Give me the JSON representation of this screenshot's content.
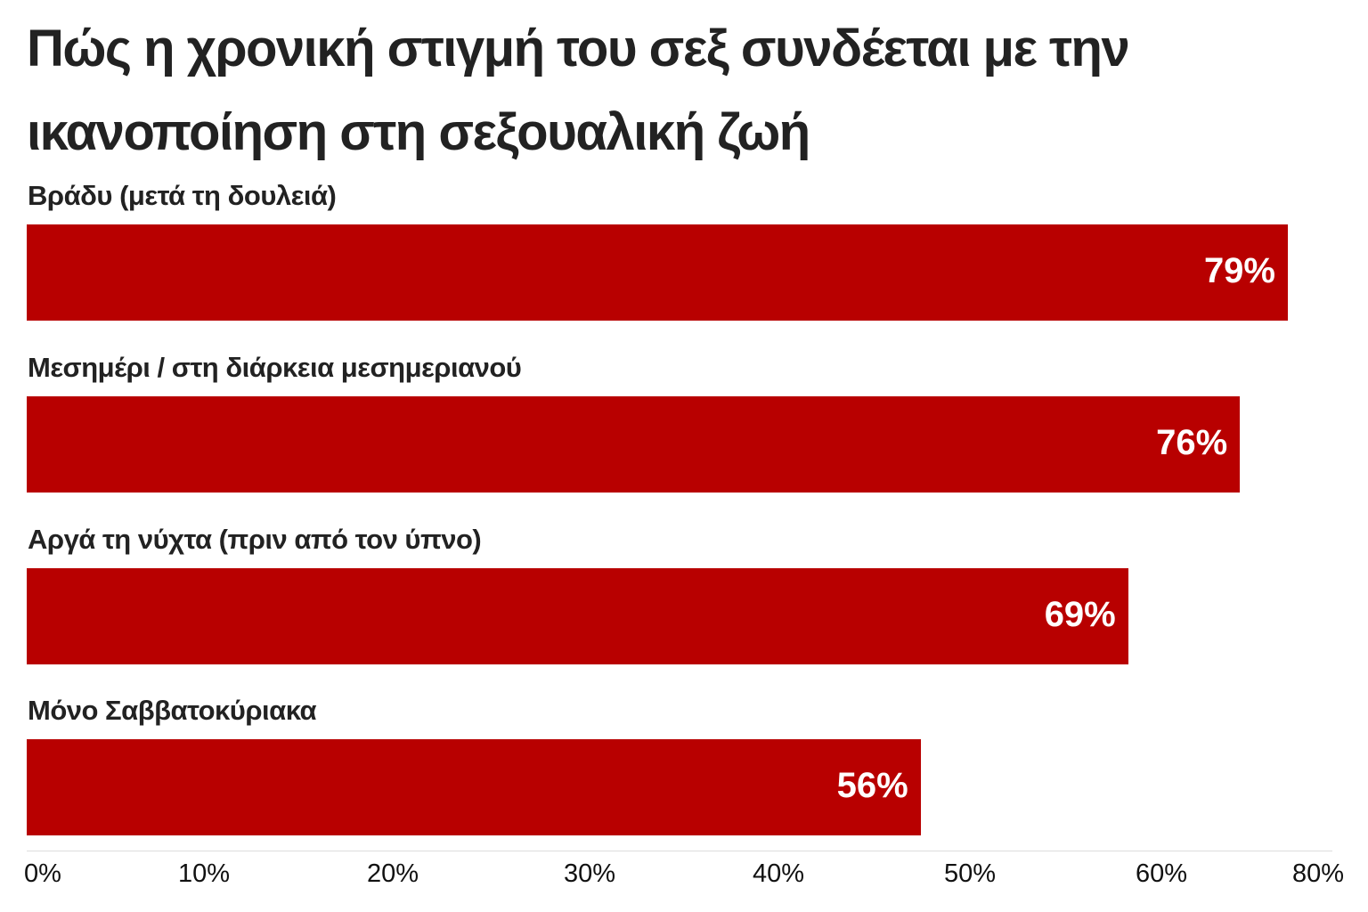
{
  "chart_data": {
    "type": "bar",
    "orientation": "horizontal",
    "title": "Πώς η χρονική στιγμή του σεξ συνδέεται με την ικανοποίηση στη σεξουαλική ζωή",
    "categories": [
      "Βράδυ (μετά τη δουλειά)",
      "Μεσημέρι / στη διάρκεια μεσημεριανού",
      "Αργά τη νύχτα (πριν από τον ύπνο)",
      "Μόνο Σαββατοκύριακα"
    ],
    "values": [
      79,
      76,
      69,
      56
    ],
    "data_labels": [
      "79%",
      "76%",
      "69%",
      "56%"
    ],
    "x_ticks": [
      "0%",
      "10%",
      "20%",
      "30%",
      "40%",
      "50%",
      "60%",
      "80%"
    ],
    "xlim": [
      0,
      80
    ],
    "grid": false,
    "bar_color": "#b80000"
  }
}
